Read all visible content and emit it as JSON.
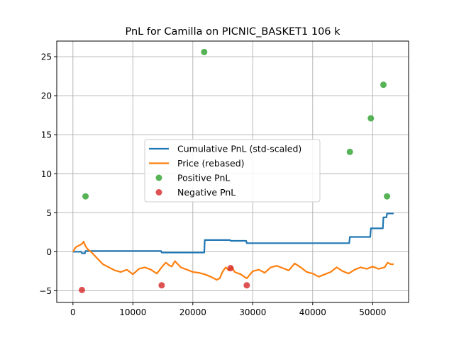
{
  "chart_data": {
    "type": "line",
    "title": "PnL for Camilla on PICNIC_BASKET1 106 k",
    "xlabel": "",
    "ylabel": "",
    "xlim": [
      -2700,
      56000
    ],
    "ylim": [
      -6.5,
      27.0
    ],
    "x_ticks": [
      0,
      10000,
      20000,
      30000,
      40000,
      50000
    ],
    "x_tick_labels": [
      "0",
      "10000",
      "20000",
      "30000",
      "40000",
      "50000"
    ],
    "y_ticks": [
      -5,
      0,
      5,
      10,
      15,
      20,
      25
    ],
    "y_tick_labels": [
      "−5",
      "0",
      "5",
      "10",
      "15",
      "20",
      "25"
    ],
    "grid": true,
    "legend_position": "center",
    "series": [
      {
        "name": "Cumulative PnL (std-scaled)",
        "kind": "step",
        "color": "#1f77b4",
        "x": [
          0,
          1400,
          1500,
          2000,
          2100,
          14700,
          14800,
          21900,
          22000,
          26200,
          26300,
          28900,
          29000,
          46100,
          46200,
          49600,
          49700,
          51700,
          51800,
          52300,
          52400,
          53500
        ],
        "y": [
          0,
          0,
          -0.2,
          -0.2,
          0.1,
          0.1,
          -0.1,
          -0.1,
          1.5,
          1.5,
          1.4,
          1.4,
          1.1,
          1.1,
          1.9,
          1.9,
          3.0,
          3.0,
          4.4,
          4.4,
          4.9,
          4.9
        ]
      },
      {
        "name": "Price (rebased)",
        "kind": "line",
        "color": "#ff7f0e",
        "x": [
          0,
          500,
          1000,
          1500,
          1800,
          2100,
          2500,
          3000,
          3500,
          4000,
          4500,
          5000,
          5500,
          6000,
          7000,
          8000,
          9000,
          10000,
          11000,
          12000,
          13000,
          14000,
          15000,
          15500,
          16000,
          16500,
          17000,
          18000,
          19000,
          20000,
          21000,
          22000,
          23000,
          24000,
          24500,
          25000,
          25500,
          26000,
          26500,
          27000,
          28000,
          29000,
          30000,
          31000,
          32000,
          33000,
          34000,
          35000,
          36000,
          37000,
          38000,
          39000,
          40000,
          41000,
          42000,
          43000,
          44000,
          45000,
          46000,
          47000,
          48000,
          49000,
          50000,
          51000,
          52000,
          52500,
          53000,
          53500
        ],
        "y": [
          0,
          0.6,
          0.8,
          1.0,
          1.3,
          0.7,
          0.3,
          0.0,
          -0.4,
          -0.8,
          -1.2,
          -1.6,
          -1.8,
          -2.0,
          -2.4,
          -2.6,
          -2.3,
          -2.9,
          -2.2,
          -2.0,
          -2.3,
          -2.8,
          -1.8,
          -1.4,
          -1.7,
          -1.9,
          -1.2,
          -2.0,
          -2.3,
          -2.6,
          -2.7,
          -2.9,
          -3.2,
          -3.6,
          -3.4,
          -2.5,
          -2.0,
          -2.4,
          -2.0,
          -2.6,
          -2.9,
          -3.4,
          -2.5,
          -2.3,
          -2.7,
          -2.0,
          -1.8,
          -2.1,
          -2.4,
          -1.5,
          -2.0,
          -2.6,
          -2.8,
          -3.2,
          -2.9,
          -2.6,
          -2.0,
          -2.5,
          -2.8,
          -2.3,
          -2.0,
          -2.2,
          -1.9,
          -2.2,
          -2.0,
          -1.4,
          -1.6,
          -1.6
        ]
      }
    ],
    "scatter": [
      {
        "name": "Positive PnL",
        "color": "#2ca02c",
        "points": [
          {
            "x": 2100,
            "y": 7.1
          },
          {
            "x": 21900,
            "y": 25.6
          },
          {
            "x": 46200,
            "y": 12.8
          },
          {
            "x": 49700,
            "y": 17.1
          },
          {
            "x": 51800,
            "y": 21.4
          },
          {
            "x": 52400,
            "y": 7.1
          }
        ]
      },
      {
        "name": "Negative PnL",
        "color": "#d62728",
        "points": [
          {
            "x": 1500,
            "y": -4.9
          },
          {
            "x": 14800,
            "y": -4.3
          },
          {
            "x": 26300,
            "y": -2.1
          },
          {
            "x": 29000,
            "y": -4.3
          }
        ]
      }
    ]
  }
}
